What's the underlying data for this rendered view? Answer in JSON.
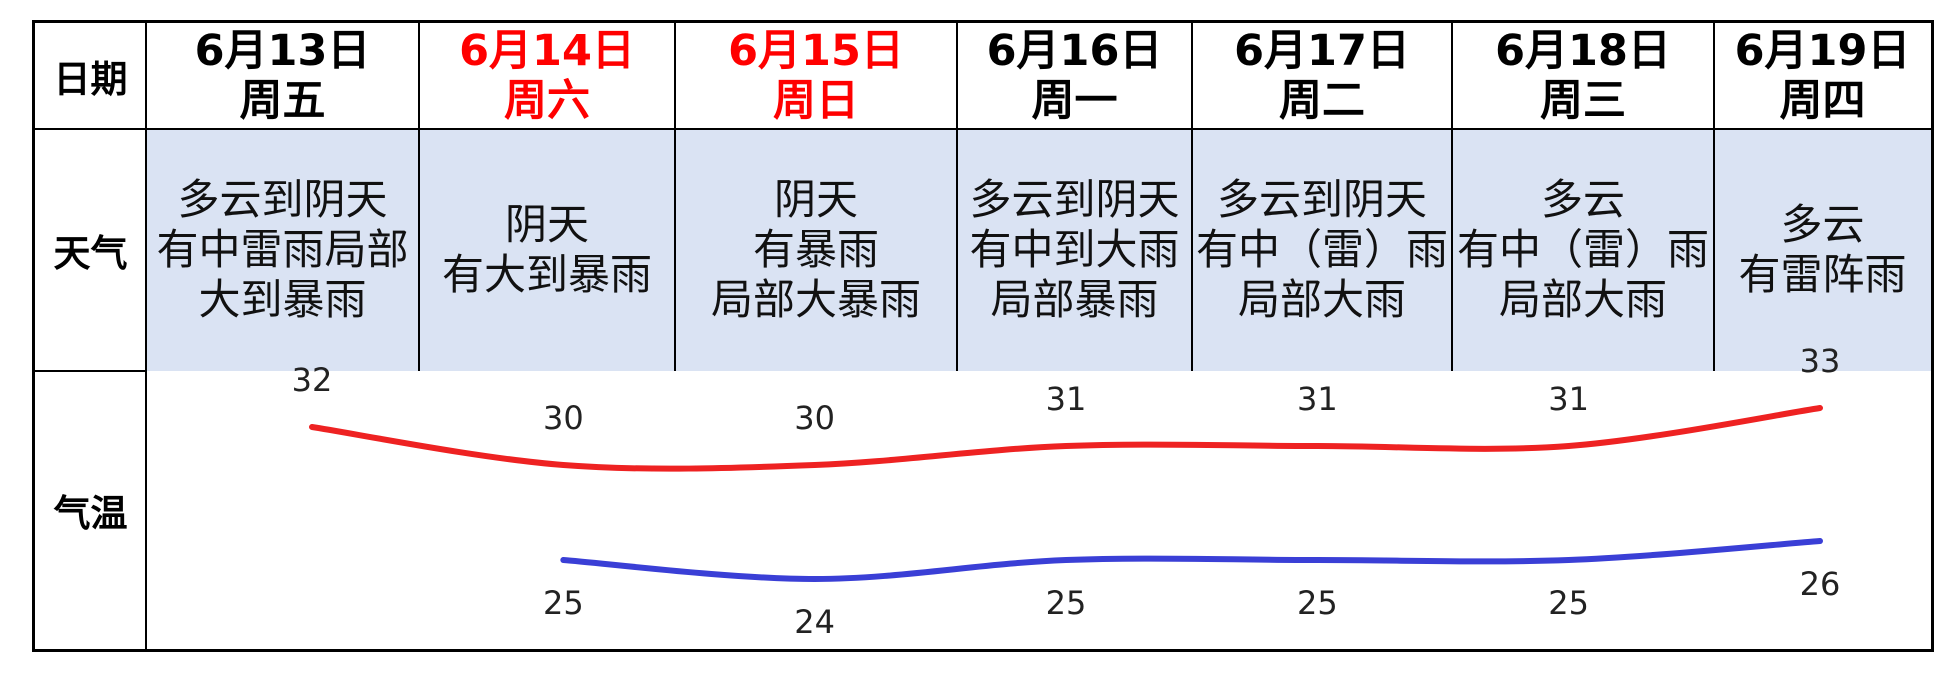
{
  "table": {
    "row_labels": {
      "date": "日期",
      "weather": "天气",
      "temperature": "气温"
    },
    "days": [
      {
        "date": "6月13日",
        "weekday": "周五",
        "weather": "多云到阴天\n有中雷雨局部\n大到暴雨",
        "holiday": false
      },
      {
        "date": "6月14日",
        "weekday": "周六",
        "weather": "阴天\n有大到暴雨",
        "holiday": true
      },
      {
        "date": "6月15日",
        "weekday": "周日",
        "weather": "阴天\n有暴雨\n局部大暴雨",
        "holiday": true
      },
      {
        "date": "6月16日",
        "weekday": "周一",
        "weather": "多云到阴天\n有中到大雨\n局部暴雨",
        "holiday": false
      },
      {
        "date": "6月17日",
        "weekday": "周二",
        "weather": "多云到阴天\n有中（雷）雨\n局部大雨",
        "holiday": false
      },
      {
        "date": "6月18日",
        "weekday": "周三",
        "weather": "多云\n有中（雷）雨\n局部大雨",
        "holiday": false
      },
      {
        "date": "6月19日",
        "weekday": "周四",
        "weather": "多云\n有雷阵雨",
        "holiday": false
      }
    ]
  },
  "colors": {
    "weekend_text": "#ff0000",
    "weather_row_bg": "#dae3f3",
    "high_line": "#ee2222",
    "low_line": "#3a3fd6"
  },
  "chart_data": {
    "type": "line",
    "categories": [
      "6月13日",
      "6月14日",
      "6月15日",
      "6月16日",
      "6月17日",
      "6月18日",
      "6月19日"
    ],
    "series": [
      {
        "values": [
          32,
          30,
          30,
          31,
          31,
          31,
          33
        ],
        "color": "#ee2222"
      },
      {
        "values": [
          null,
          25,
          24,
          25,
          25,
          25,
          26
        ],
        "color": "#3a3fd6"
      }
    ],
    "data_labels": true,
    "smooth": true,
    "grid": false,
    "xlabel": "",
    "ylabel": ""
  }
}
